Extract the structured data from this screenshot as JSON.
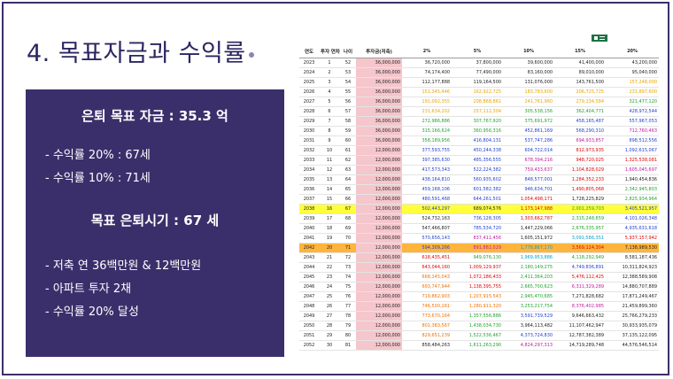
{
  "slide": {
    "title": "4. 목표자금과 수익률"
  },
  "panel": {
    "heading1": "은퇴 목표 자금 : 35.3 억",
    "line1": "- 수익률 20% : 67세",
    "line2": "- 수익률 10% : 71세",
    "heading2": "목표 은퇴시기 : 67 세",
    "line3": "- 저축 연 36백만원 & 12백만원",
    "line4": "- 아파트 투자 2채",
    "line5": "- 수익률 20% 달성"
  },
  "table": {
    "headers": [
      "연도",
      "투자 연차",
      "나이",
      "투자금(저축)",
      "2%",
      "5%",
      "10%",
      "15%",
      "20%"
    ],
    "highlight_yellow_year": "2038",
    "highlight_orange_year": "2042",
    "rows": [
      [
        "2023",
        "1",
        "52",
        "36,000,000",
        "36,720,000",
        "37,800,000",
        "39,600,000",
        "41,400,000",
        "43,200,000"
      ],
      [
        "2024",
        "2",
        "53",
        "36,000,000",
        "74,174,400",
        "77,490,000",
        "83,160,000",
        "89,010,000",
        "95,040,000"
      ],
      [
        "2025",
        "3",
        "54",
        "36,000,000",
        "112,177,888",
        "119,164,500",
        "131,076,000",
        "143,761,500",
        "157,248,000"
      ],
      [
        "2026",
        "4",
        "55",
        "36,000,000",
        "151,345,446",
        "162,922,725",
        "183,783,600",
        "206,725,725",
        "231,897,600"
      ],
      [
        "2027",
        "5",
        "56",
        "36,000,000",
        "191,092,355",
        "208,868,861",
        "241,761,960",
        "279,134,584",
        "321,477,120"
      ],
      [
        "2028",
        "6",
        "57",
        "36,000,000",
        "231,634,202",
        "257,112,304",
        "305,538,156",
        "362,404,771",
        "428,972,544"
      ],
      [
        "2029",
        "7",
        "58",
        "36,000,000",
        "272,986,886",
        "307,767,920",
        "375,691,972",
        "458,165,487",
        "557,967,053"
      ],
      [
        "2030",
        "8",
        "59",
        "36,000,000",
        "315,166,624",
        "360,956,316",
        "452,861,169",
        "568,290,310",
        "712,760,463"
      ],
      [
        "2031",
        "9",
        "60",
        "36,000,000",
        "358,189,956",
        "416,804,131",
        "537,747,286",
        "694,933,857",
        "898,512,556"
      ],
      [
        "2032",
        "10",
        "61",
        "12,000,000",
        "377,593,755",
        "450,244,338",
        "604,722,014",
        "812,973,935",
        "1,092,615,067"
      ],
      [
        "2033",
        "11",
        "62",
        "12,000,000",
        "397,385,630",
        "485,356,555",
        "678,394,216",
        "948,720,025",
        "1,325,538,081"
      ],
      [
        "2034",
        "12",
        "63",
        "12,000,000",
        "417,573,343",
        "522,224,382",
        "759,433,637",
        "1,104,828,029",
        "1,605,045,697"
      ],
      [
        "2035",
        "13",
        "64",
        "12,000,000",
        "438,164,810",
        "560,935,602",
        "848,577,001",
        "1,284,352,233",
        "1,940,454,836"
      ],
      [
        "2036",
        "14",
        "65",
        "12,000,000",
        "459,168,106",
        "601,582,382",
        "946,634,701",
        "1,490,805,068",
        "2,342,945,803"
      ],
      [
        "2037",
        "15",
        "66",
        "12,000,000",
        "480,591,468",
        "644,261,501",
        "1,054,498,171",
        "1,728,225,829",
        "2,825,934,964"
      ],
      [
        "2038",
        "16",
        "67",
        "12,000,000",
        "502,443,297",
        "689,074,576",
        "1,173,147,988",
        "2,001,259,703",
        "3,405,521,957"
      ],
      [
        "2039",
        "17",
        "68",
        "12,000,000",
        "524,732,163",
        "736,128,305",
        "1,303,662,787",
        "2,315,248,659",
        "4,101,026,348"
      ],
      [
        "2040",
        "18",
        "69",
        "12,000,000",
        "547,466,807",
        "785,534,720",
        "1,447,229,066",
        "2,676,335,957",
        "4,935,631,618"
      ],
      [
        "2041",
        "19",
        "70",
        "12,000,000",
        "570,656,143",
        "837,411,456",
        "1,605,151,972",
        "3,091,586,351",
        "5,937,157,942"
      ],
      [
        "2042",
        "20",
        "71",
        "12,000,000",
        "594,309,266",
        "891,882,029",
        "1,778,867,170",
        "3,569,124,304",
        "7,138,989,530"
      ],
      [
        "2043",
        "21",
        "72",
        "12,000,000",
        "618,435,451",
        "949,076,130",
        "1,969,953,886",
        "4,118,292,949",
        "8,581,187,436"
      ],
      [
        "2044",
        "22",
        "73",
        "12,000,000",
        "643,044,160",
        "1,009,129,937",
        "2,180,149,275",
        "4,749,836,891",
        "10,311,824,923"
      ],
      [
        "2045",
        "23",
        "74",
        "12,000,000",
        "668,145,043",
        "1,072,186,433",
        "2,411,364,203",
        "5,476,112,425",
        "12,388,589,908"
      ],
      [
        "2046",
        "24",
        "75",
        "12,000,000",
        "693,747,944",
        "1,138,395,755",
        "2,665,700,623",
        "6,311,329,289",
        "14,880,707,889"
      ],
      [
        "2047",
        "25",
        "76",
        "12,000,000",
        "719,862,903",
        "1,207,915,543",
        "2,945,470,685",
        "7,271,828,682",
        "17,871,249,467"
      ],
      [
        "2048",
        "26",
        "77",
        "12,000,000",
        "746,500,161",
        "1,280,911,320",
        "3,253,217,754",
        "8,376,402,985",
        "21,459,899,360"
      ],
      [
        "2049",
        "27",
        "78",
        "12,000,000",
        "773,670,164",
        "1,357,556,886",
        "3,591,739,529",
        "9,646,663,432",
        "25,766,279,233"
      ],
      [
        "2050",
        "28",
        "79",
        "12,000,000",
        "801,383,567",
        "1,438,034,730",
        "3,964,113,482",
        "11,107,462,947",
        "30,933,935,079"
      ],
      [
        "2051",
        "29",
        "80",
        "12,000,000",
        "829,651,239",
        "1,522,536,467",
        "4,373,724,830",
        "12,787,382,389",
        "37,135,122,095"
      ],
      [
        "2052",
        "30",
        "81",
        "12,000,000",
        "858,484,263",
        "1,611,263,290",
        "4,824,297,313",
        "14,719,289,748",
        "44,576,546,514"
      ]
    ],
    "color_codes": {
      "k": "#222222",
      "y": "#e8a400",
      "g": "#1fa32f",
      "b": "#1f3fd0",
      "m": "#c0199c",
      "r": "#e00000",
      "o": "#f07000",
      "t": "#00a0d0",
      "d": "#a06400"
    },
    "cell_colors": [
      "kkkkk",
      "kkkkk",
      "kkkky",
      "yyyyy",
      "yyyyg",
      "yyggb",
      "gggbb",
      "ggbbm",
      "gbbmb",
      "bbbrb",
      "bbmrr",
      "bbmrm",
      "bbbrk",
      "bbbrg",
      "bbrkg",
      "bkrgb",
      "kbrgb",
      "kbkgb",
      "bmktr",
      "bmtrk",
      "rgtgk",
      "rrgbk",
      "orgrk",
      "orgmk",
      "oogkk",
      "oogmk",
      "ogbkk",
      "ogkkk",
      "ogbkk",
      "kgmkk"
    ]
  }
}
